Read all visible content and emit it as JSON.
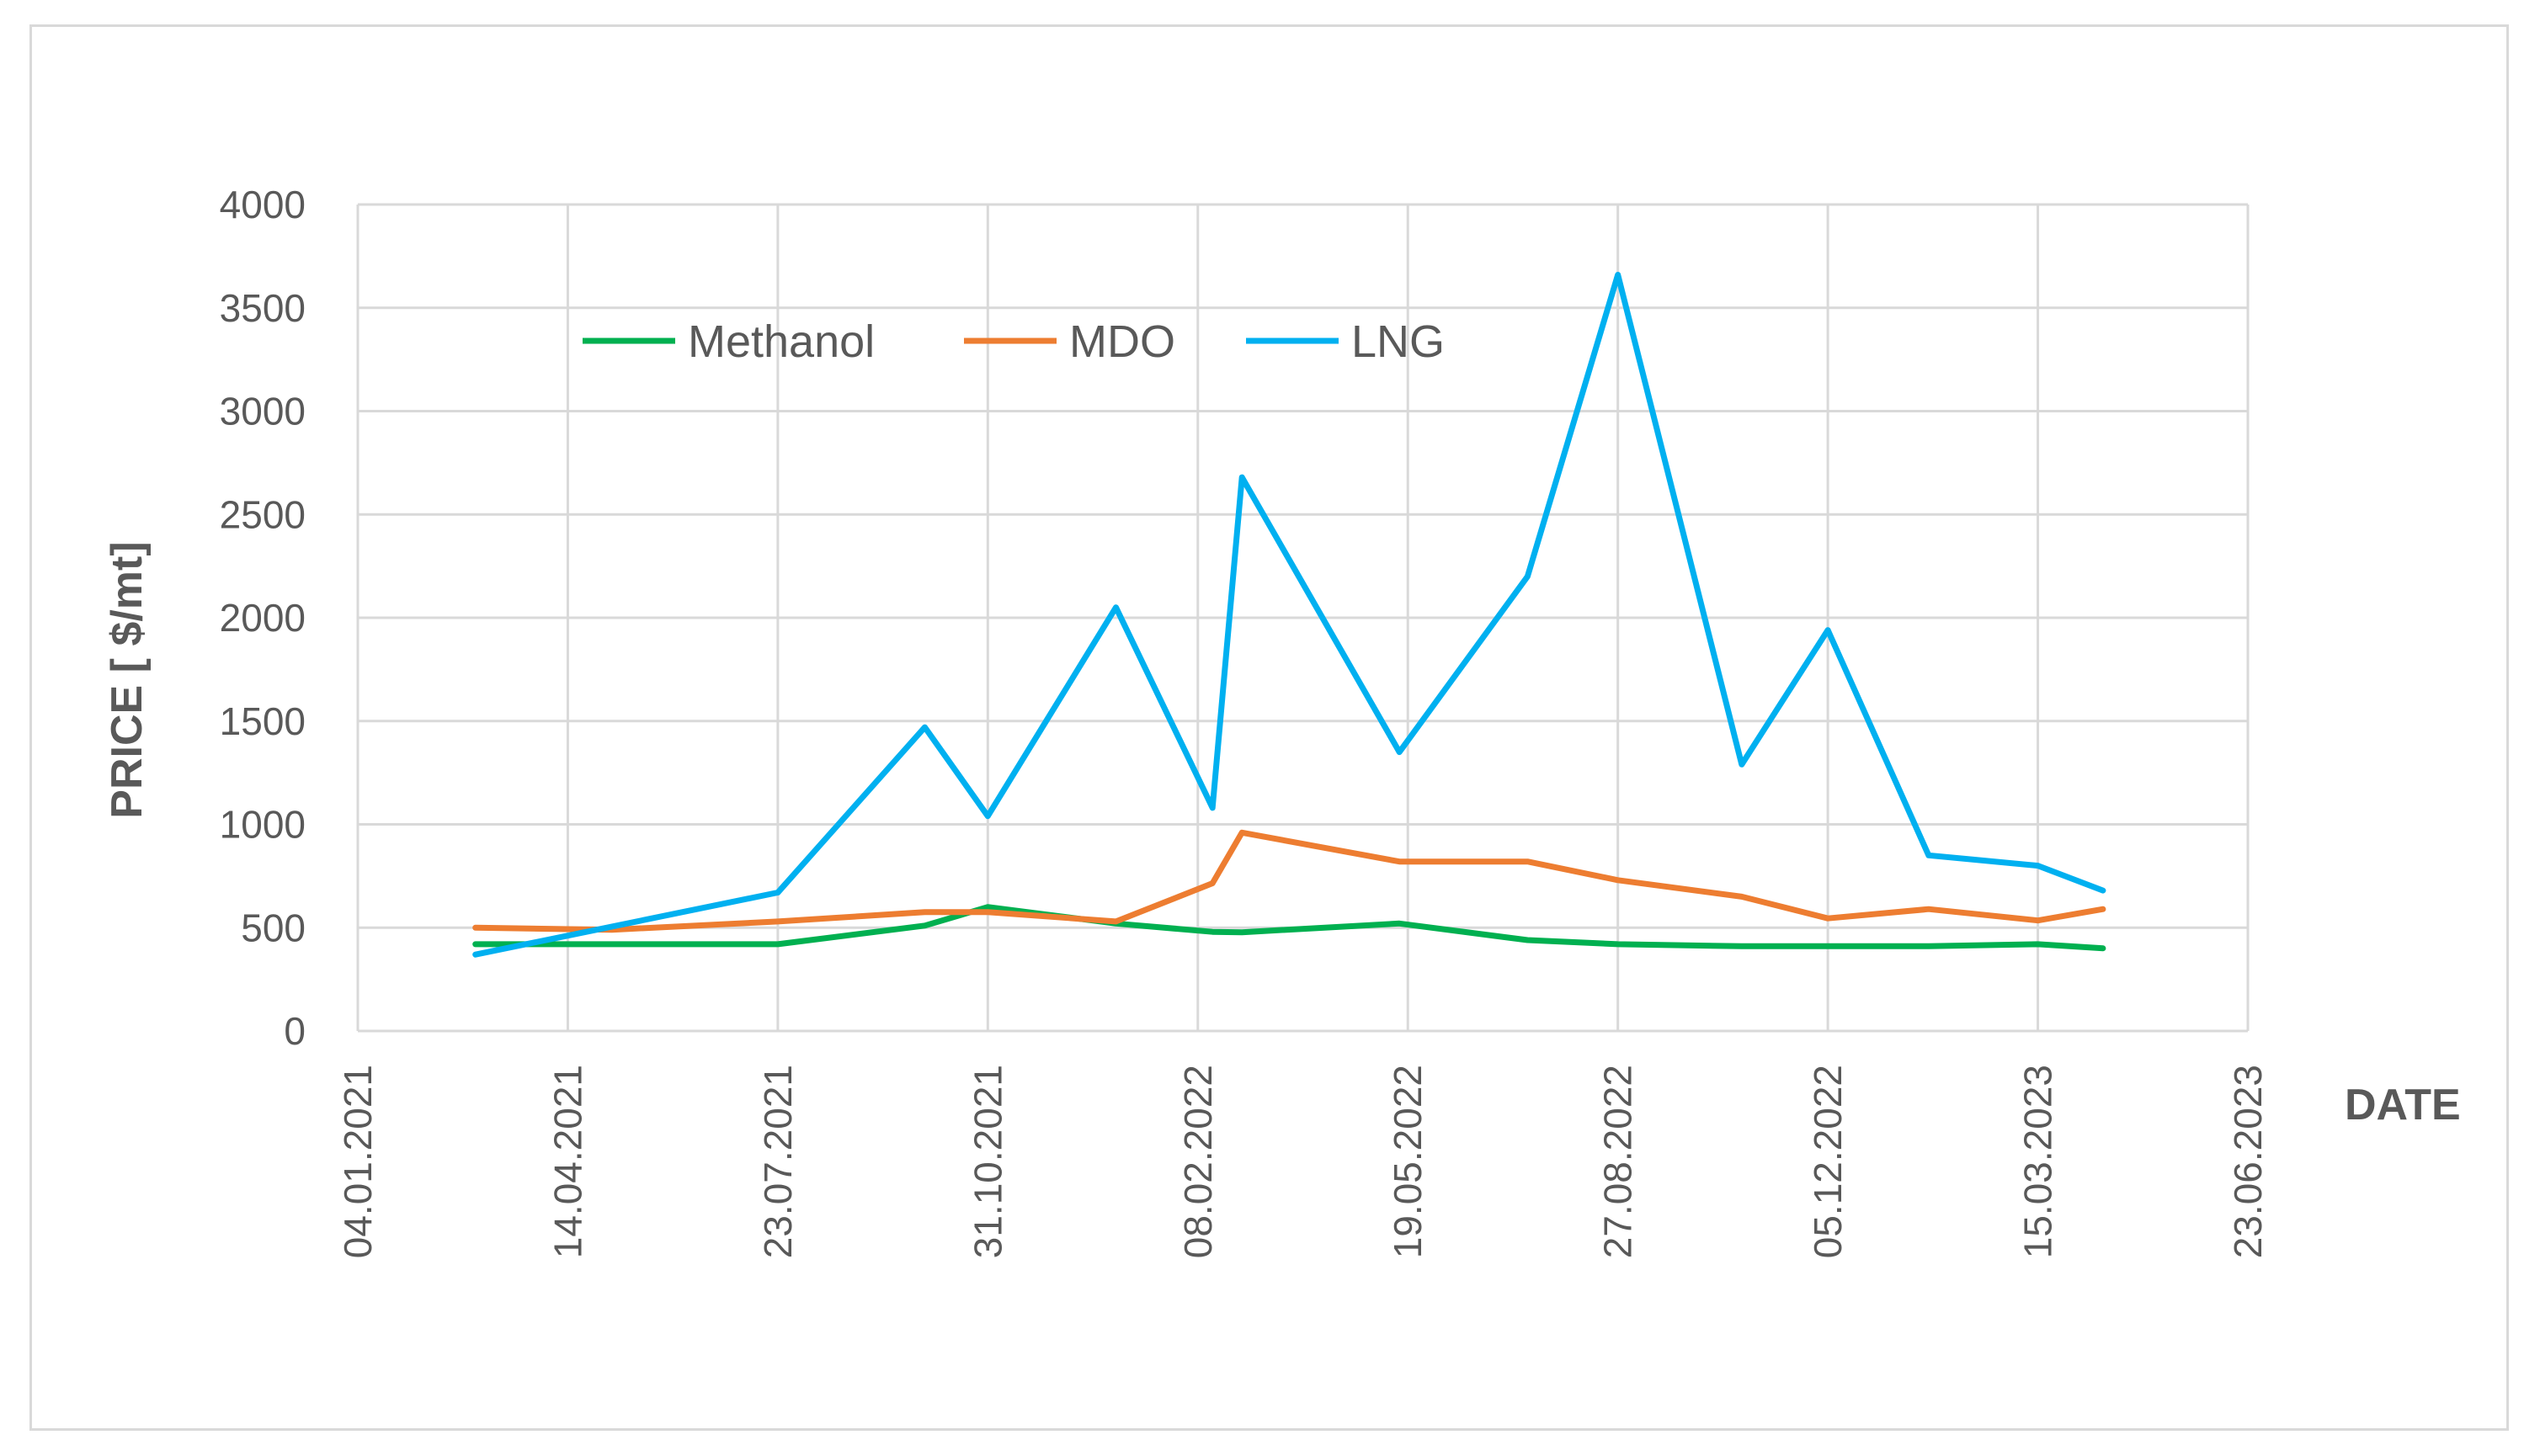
{
  "chart_data": {
    "type": "line",
    "title": "",
    "xlabel": "DATE",
    "ylabel": "PRICE [ $/mt]",
    "ylim": [
      0,
      4000
    ],
    "xlim": [
      "2021-01-04",
      "2023-06-23"
    ],
    "yticks": [
      "0",
      "500",
      "1000",
      "1500",
      "2000",
      "2500",
      "3000",
      "3500",
      "4000"
    ],
    "xticks": [
      "04.01.2021",
      "14.04.2021",
      "23.07.2021",
      "31.10.2021",
      "08.02.2022",
      "19.05.2022",
      "27.08.2022",
      "05.12.2022",
      "15.03.2023",
      "23.06.2023"
    ],
    "grid": true,
    "legend_position": "top-left",
    "series": [
      {
        "name": "Methanol",
        "color": "#00b050",
        "points": [
          [
            "2021-03-01",
            420
          ],
          [
            "2021-07-23",
            420
          ],
          [
            "2021-10-01",
            510
          ],
          [
            "2021-10-31",
            600
          ],
          [
            "2021-12-31",
            520
          ],
          [
            "2022-02-15",
            480
          ],
          [
            "2022-03-01",
            478
          ],
          [
            "2022-05-15",
            520
          ],
          [
            "2022-07-15",
            440
          ],
          [
            "2022-08-27",
            420
          ],
          [
            "2022-10-25",
            410
          ],
          [
            "2022-12-05",
            410
          ],
          [
            "2023-01-22",
            410
          ],
          [
            "2023-03-15",
            420
          ],
          [
            "2023-04-15",
            400
          ]
        ]
      },
      {
        "name": "MDO",
        "color": "#ed7d31",
        "points": [
          [
            "2021-03-01",
            500
          ],
          [
            "2021-05-05",
            490
          ],
          [
            "2021-07-23",
            530
          ],
          [
            "2021-10-01",
            575
          ],
          [
            "2021-10-31",
            575
          ],
          [
            "2021-12-31",
            530
          ],
          [
            "2022-02-15",
            715
          ],
          [
            "2022-03-01",
            960
          ],
          [
            "2022-05-15",
            820
          ],
          [
            "2022-07-15",
            820
          ],
          [
            "2022-08-27",
            730
          ],
          [
            "2022-10-25",
            650
          ],
          [
            "2022-12-05",
            545
          ],
          [
            "2023-01-22",
            590
          ],
          [
            "2023-03-15",
            535
          ],
          [
            "2023-04-15",
            590
          ]
        ]
      },
      {
        "name": "LNG",
        "color": "#00b0f0",
        "points": [
          [
            "2021-03-01",
            370
          ],
          [
            "2021-07-23",
            670
          ],
          [
            "2021-10-01",
            1470
          ],
          [
            "2021-10-31",
            1040
          ],
          [
            "2021-12-31",
            2050
          ],
          [
            "2022-02-15",
            1080
          ],
          [
            "2022-03-01",
            2680
          ],
          [
            "2022-05-15",
            1350
          ],
          [
            "2022-07-15",
            2200
          ],
          [
            "2022-08-27",
            3660
          ],
          [
            "2022-10-25",
            1290
          ],
          [
            "2022-12-05",
            1940
          ],
          [
            "2023-01-22",
            850
          ],
          [
            "2023-03-15",
            800
          ],
          [
            "2023-04-15",
            680
          ]
        ]
      }
    ]
  }
}
